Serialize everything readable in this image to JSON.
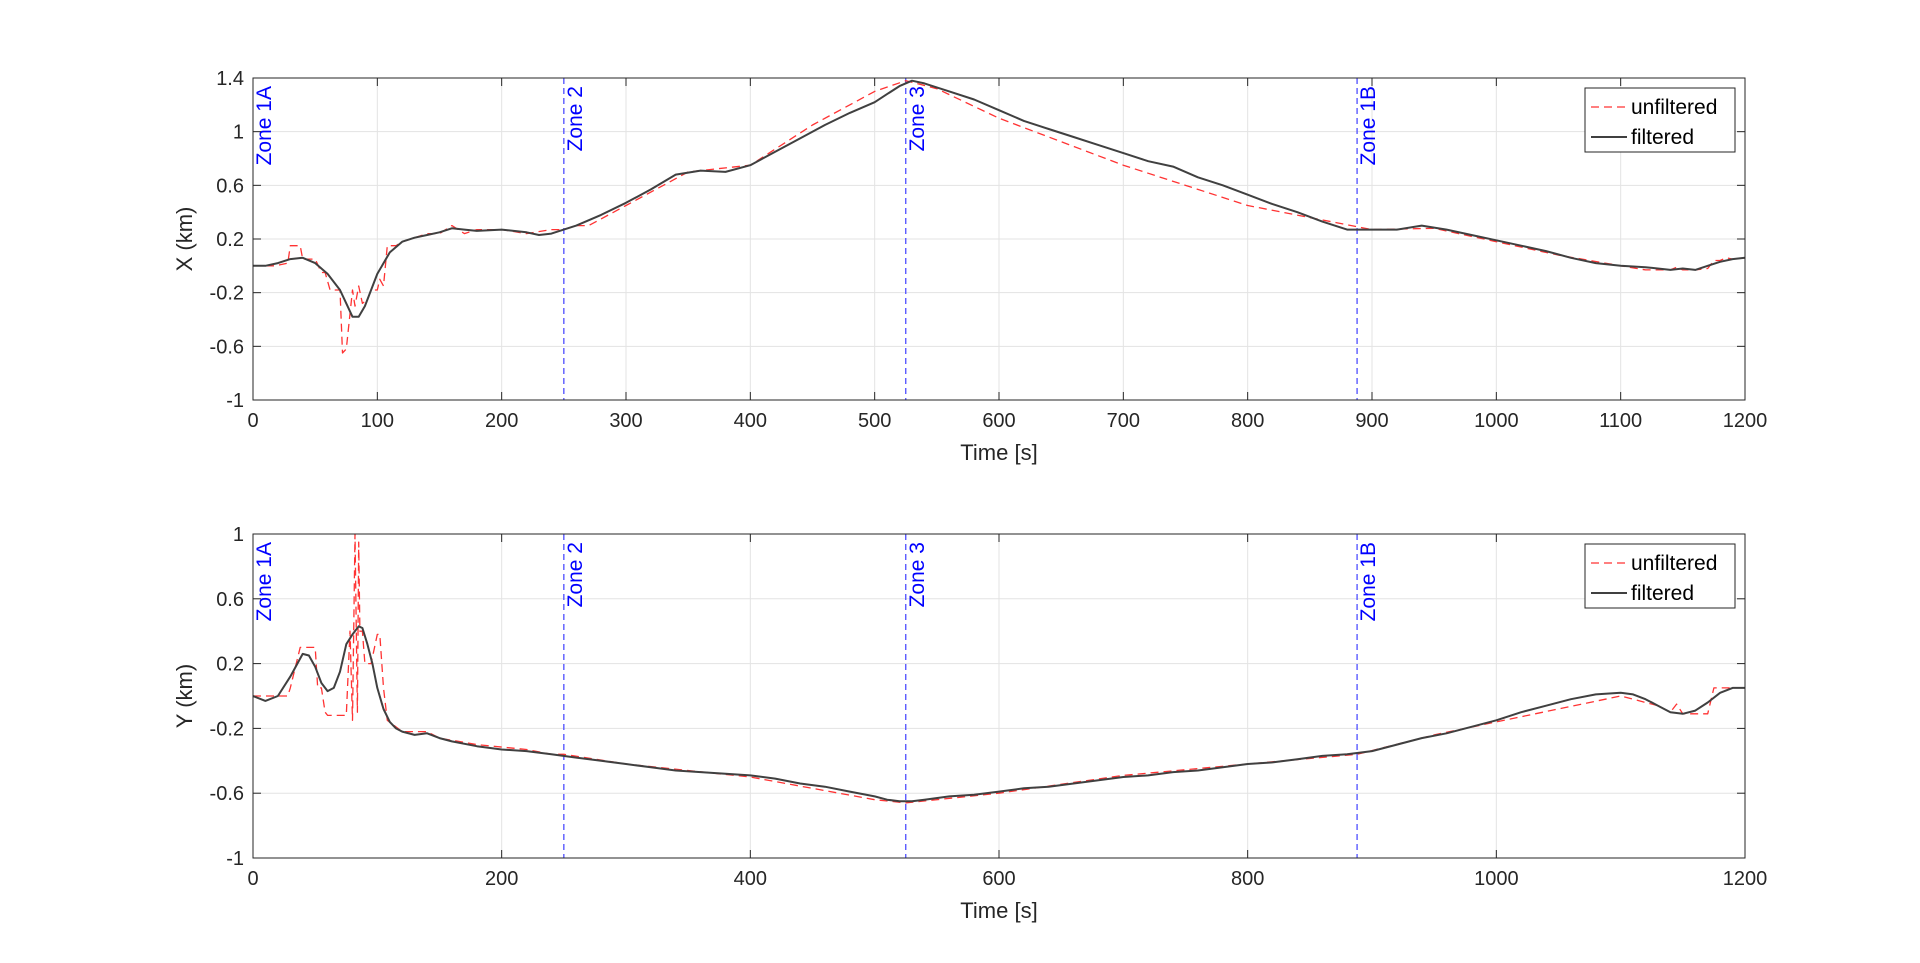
{
  "figure": {
    "colors": {
      "unfiltered": "#ff3333",
      "filtered": "#404040",
      "zone": "#4d4dff",
      "zone_text": "#0000ff",
      "grid": "#e3e3e3",
      "axis": "#262626",
      "background": "#ffffff"
    }
  },
  "chart_data": [
    {
      "type": "line",
      "title": "",
      "xlabel": "Time [s]",
      "ylabel": "X (km)",
      "xlim": [
        0,
        1200
      ],
      "ylim": [
        -1,
        1.4
      ],
      "grid": true,
      "legend_position": "top-right",
      "x_ticks": [
        0,
        100,
        200,
        300,
        400,
        500,
        600,
        700,
        800,
        900,
        1000,
        1100,
        1200
      ],
      "x_tick_labels": [
        "0",
        "100",
        "200",
        "300",
        "400",
        "500",
        "600",
        "700",
        "800",
        "900",
        "1000",
        "1100",
        "1200"
      ],
      "y_ticks": [
        -1,
        -0.6,
        -0.2,
        0.2,
        0.6,
        1,
        1.4
      ],
      "y_tick_labels": [
        "-1",
        "-0.6",
        "-0.2",
        "0.2",
        "0.6",
        "1",
        "1.4"
      ],
      "zones": [
        {
          "x": 0,
          "label": "Zone 1A"
        },
        {
          "x": 250,
          "label": "Zone 2"
        },
        {
          "x": 525,
          "label": "Zone 3"
        },
        {
          "x": 888,
          "label": "Zone 1B"
        }
      ],
      "series": [
        {
          "name": "unfiltered",
          "style": "dashed",
          "x": [
            0,
            18,
            28,
            30,
            38,
            40,
            48,
            50,
            55,
            58,
            62,
            70,
            72,
            75,
            80,
            82,
            85,
            88,
            92,
            95,
            100,
            102,
            105,
            108,
            115,
            120,
            130,
            140,
            150,
            160,
            170,
            180,
            200,
            220,
            240,
            250,
            260,
            270,
            280,
            300,
            350,
            400,
            450,
            500,
            525,
            550,
            600,
            700,
            800,
            900,
            950,
            1000,
            1050,
            1100,
            1120,
            1130,
            1140,
            1145,
            1150,
            1160,
            1170,
            1175,
            1180,
            1185,
            1190,
            1200
          ],
          "y": [
            0,
            0,
            0.02,
            0.15,
            0.15,
            0.05,
            0.05,
            0.05,
            -0.05,
            -0.05,
            -0.18,
            -0.18,
            -0.65,
            -0.62,
            -0.18,
            -0.3,
            -0.15,
            -0.28,
            -0.25,
            -0.18,
            -0.18,
            -0.1,
            -0.15,
            0.15,
            0.15,
            0.18,
            0.21,
            0.24,
            0.24,
            0.3,
            0.24,
            0.27,
            0.27,
            0.24,
            0.27,
            0.27,
            0.3,
            0.3,
            0.35,
            0.45,
            0.7,
            0.75,
            1.05,
            1.3,
            1.38,
            1.32,
            1.1,
            0.75,
            0.45,
            0.27,
            0.28,
            0.18,
            0.08,
            0.0,
            -0.03,
            -0.03,
            -0.03,
            -0.01,
            -0.03,
            -0.03,
            -0.02,
            0.04,
            0.04,
            0.06,
            0.05,
            0.06
          ]
        },
        {
          "name": "filtered",
          "style": "solid",
          "x": [
            0,
            10,
            20,
            30,
            40,
            50,
            60,
            70,
            75,
            80,
            85,
            90,
            95,
            100,
            110,
            120,
            130,
            140,
            150,
            160,
            170,
            180,
            200,
            220,
            230,
            240,
            250,
            260,
            280,
            300,
            320,
            340,
            360,
            380,
            400,
            420,
            440,
            460,
            480,
            500,
            510,
            520,
            530,
            540,
            560,
            580,
            600,
            620,
            640,
            660,
            680,
            700,
            720,
            740,
            760,
            780,
            800,
            820,
            840,
            860,
            880,
            890,
            900,
            920,
            940,
            960,
            980,
            1000,
            1020,
            1040,
            1060,
            1080,
            1100,
            1120,
            1140,
            1150,
            1160,
            1170,
            1180,
            1190,
            1200
          ],
          "y": [
            0.0,
            0.0,
            0.02,
            0.05,
            0.06,
            0.02,
            -0.06,
            -0.18,
            -0.28,
            -0.38,
            -0.38,
            -0.3,
            -0.18,
            -0.06,
            0.1,
            0.18,
            0.21,
            0.23,
            0.25,
            0.28,
            0.27,
            0.26,
            0.27,
            0.25,
            0.23,
            0.24,
            0.27,
            0.3,
            0.38,
            0.47,
            0.57,
            0.68,
            0.71,
            0.7,
            0.75,
            0.85,
            0.95,
            1.05,
            1.14,
            1.22,
            1.28,
            1.34,
            1.38,
            1.36,
            1.3,
            1.24,
            1.16,
            1.08,
            1.02,
            0.96,
            0.9,
            0.84,
            0.78,
            0.74,
            0.66,
            0.6,
            0.53,
            0.46,
            0.4,
            0.33,
            0.27,
            0.27,
            0.27,
            0.27,
            0.3,
            0.27,
            0.23,
            0.19,
            0.15,
            0.11,
            0.06,
            0.02,
            0.0,
            -0.01,
            -0.03,
            -0.02,
            -0.03,
            0.0,
            0.03,
            0.05,
            0.06
          ]
        }
      ]
    },
    {
      "type": "line",
      "title": "",
      "xlabel": "Time [s]",
      "ylabel": "Y (km)",
      "xlim": [
        0,
        1200
      ],
      "ylim": [
        -1,
        1
      ],
      "grid": true,
      "legend_position": "top-right",
      "x_ticks": [
        0,
        200,
        400,
        600,
        800,
        1000,
        1200
      ],
      "x_tick_labels": [
        "0",
        "200",
        "400",
        "600",
        "800",
        "1000",
        "1200"
      ],
      "y_ticks": [
        -1,
        -0.6,
        -0.2,
        0.2,
        0.6,
        1
      ],
      "y_tick_labels": [
        "-1",
        "-0.6",
        "-0.2",
        "0.2",
        "0.6",
        "1"
      ],
      "zones": [
        {
          "x": 0,
          "label": "Zone 1A"
        },
        {
          "x": 250,
          "label": "Zone 2"
        },
        {
          "x": 525,
          "label": "Zone 3"
        },
        {
          "x": 888,
          "label": "Zone 1B"
        }
      ],
      "series": [
        {
          "name": "unfiltered",
          "style": "dashed",
          "x": [
            0,
            28,
            30,
            38,
            40,
            50,
            52,
            55,
            58,
            60,
            75,
            78,
            80,
            82,
            84,
            85,
            86,
            88,
            90,
            95,
            100,
            102,
            105,
            108,
            120,
            140,
            150,
            180,
            220,
            240,
            250,
            300,
            400,
            500,
            525,
            600,
            700,
            800,
            888,
            950,
            1000,
            1100,
            1130,
            1140,
            1145,
            1150,
            1160,
            1170,
            1175,
            1180,
            1190,
            1200
          ],
          "y": [
            0.0,
            0.0,
            0.05,
            0.3,
            0.3,
            0.3,
            0.05,
            0.05,
            -0.1,
            -0.12,
            -0.12,
            0.4,
            -0.15,
            1.0,
            -0.1,
            0.95,
            0.4,
            0.4,
            0.2,
            0.2,
            0.38,
            0.38,
            0.05,
            -0.15,
            -0.22,
            -0.22,
            -0.26,
            -0.3,
            -0.33,
            -0.36,
            -0.36,
            -0.42,
            -0.5,
            -0.64,
            -0.66,
            -0.6,
            -0.49,
            -0.42,
            -0.36,
            -0.24,
            -0.16,
            0.0,
            -0.06,
            -0.1,
            -0.05,
            -0.11,
            -0.11,
            -0.11,
            0.05,
            0.05,
            0.05,
            0.05
          ]
        },
        {
          "name": "filtered",
          "style": "solid",
          "x": [
            0,
            10,
            20,
            30,
            40,
            45,
            50,
            55,
            60,
            65,
            70,
            75,
            80,
            85,
            88,
            92,
            96,
            100,
            105,
            110,
            115,
            120,
            130,
            140,
            150,
            160,
            180,
            200,
            220,
            240,
            260,
            280,
            300,
            320,
            340,
            360,
            380,
            400,
            420,
            440,
            460,
            480,
            500,
            510,
            520,
            530,
            540,
            560,
            580,
            600,
            620,
            640,
            660,
            680,
            700,
            720,
            740,
            760,
            780,
            800,
            820,
            840,
            860,
            880,
            900,
            920,
            940,
            960,
            980,
            1000,
            1020,
            1040,
            1060,
            1080,
            1100,
            1110,
            1120,
            1130,
            1140,
            1150,
            1160,
            1170,
            1180,
            1190,
            1200
          ],
          "y": [
            0.0,
            -0.03,
            0.0,
            0.12,
            0.26,
            0.25,
            0.18,
            0.08,
            0.03,
            0.05,
            0.15,
            0.32,
            0.38,
            0.43,
            0.42,
            0.32,
            0.2,
            0.05,
            -0.08,
            -0.16,
            -0.2,
            -0.22,
            -0.24,
            -0.23,
            -0.26,
            -0.28,
            -0.31,
            -0.33,
            -0.34,
            -0.36,
            -0.38,
            -0.4,
            -0.42,
            -0.44,
            -0.46,
            -0.47,
            -0.48,
            -0.49,
            -0.51,
            -0.54,
            -0.56,
            -0.59,
            -0.62,
            -0.64,
            -0.65,
            -0.65,
            -0.64,
            -0.62,
            -0.61,
            -0.59,
            -0.57,
            -0.56,
            -0.54,
            -0.52,
            -0.5,
            -0.49,
            -0.47,
            -0.46,
            -0.44,
            -0.42,
            -0.41,
            -0.39,
            -0.37,
            -0.36,
            -0.34,
            -0.3,
            -0.26,
            -0.23,
            -0.19,
            -0.15,
            -0.1,
            -0.06,
            -0.02,
            0.01,
            0.02,
            0.01,
            -0.02,
            -0.06,
            -0.1,
            -0.11,
            -0.09,
            -0.04,
            0.02,
            0.05,
            0.05
          ]
        }
      ]
    }
  ]
}
